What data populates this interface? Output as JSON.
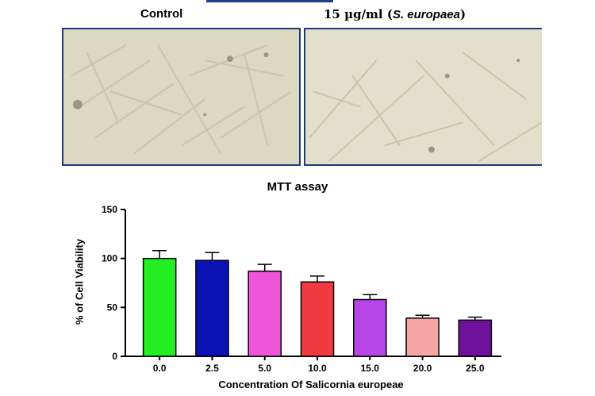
{
  "panels": {
    "left_label": "Control",
    "right_label_prefix": "15 µg/ml (",
    "right_label_species": "S. europaea",
    "right_label_suffix": ")"
  },
  "chart_data": {
    "type": "bar",
    "title": "MTT assay",
    "xlabel": "Concentration Of Salicornia europeae",
    "ylabel": "% of Cell Viability",
    "categories": [
      "0.0",
      "2.5",
      "5.0",
      "10.0",
      "15.0",
      "20.0",
      "25.0"
    ],
    "values": [
      100,
      98,
      87,
      76,
      58,
      39,
      37
    ],
    "errors": [
      8,
      8,
      7,
      6,
      5,
      3,
      3
    ],
    "colors": [
      "#22ee22",
      "#0b13b5",
      "#ee55d8",
      "#ee3a40",
      "#b845e8",
      "#f7a6a6",
      "#6f119c"
    ],
    "ylim": [
      0,
      150
    ],
    "yticks": [
      0,
      50,
      100,
      150
    ],
    "grid": false
  }
}
